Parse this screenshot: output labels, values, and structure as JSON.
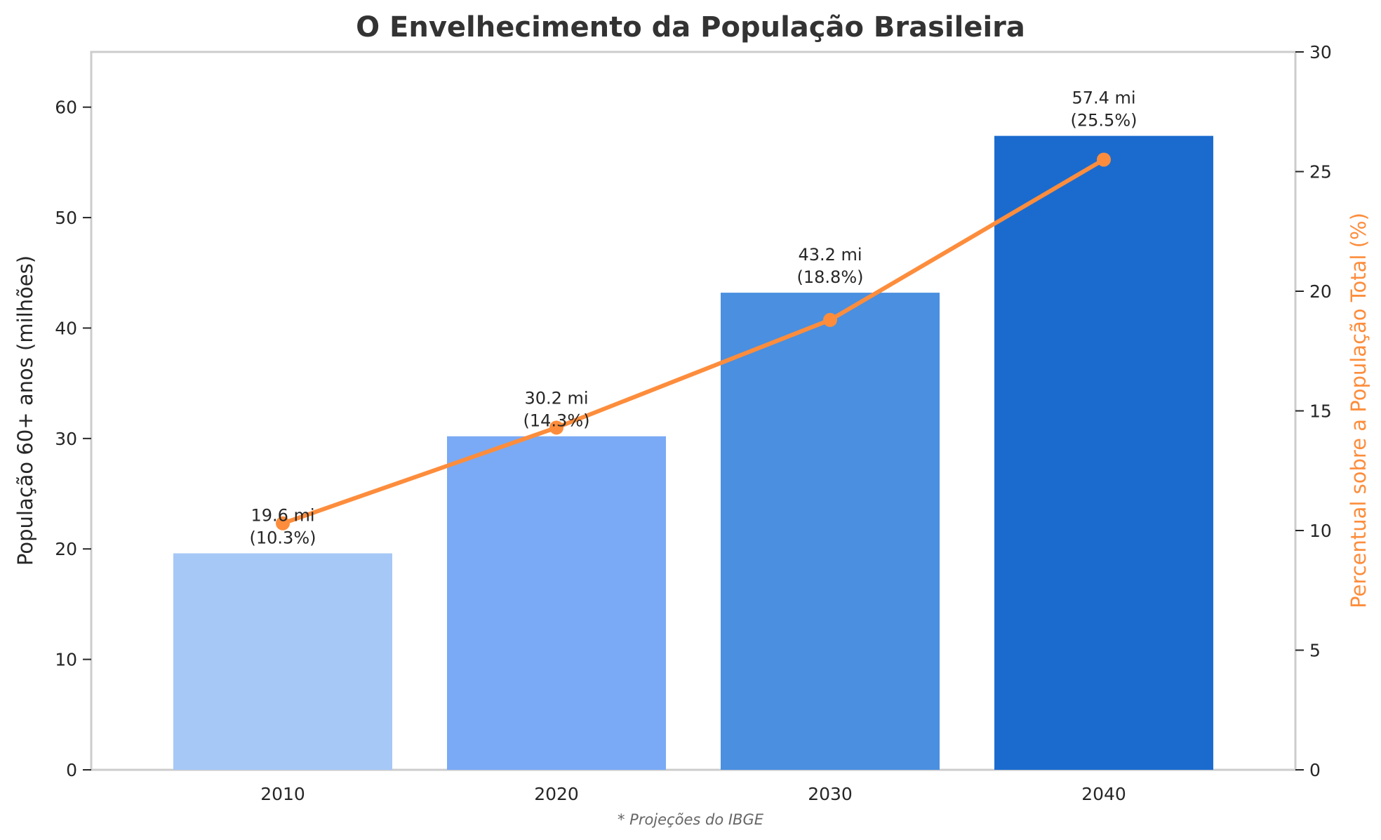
{
  "chart_data": {
    "type": "bar",
    "title": "O Envelhecimento da População Brasileira",
    "categories": [
      "2010",
      "2020",
      "2030",
      "2040"
    ],
    "series": [
      {
        "name": "População 60+ anos (milhões)",
        "type": "bar",
        "axis": "left",
        "values": [
          19.6,
          30.2,
          43.2,
          57.4
        ],
        "colors": [
          "#a5c8f6",
          "#7aaaf5",
          "#4a8fe0",
          "#1b6bcf"
        ]
      },
      {
        "name": "Percentual sobre a População Total (%)",
        "type": "line",
        "axis": "right",
        "values": [
          10.3,
          14.3,
          18.8,
          25.5
        ],
        "color": "#fd8d3c"
      }
    ],
    "data_labels": [
      {
        "line1": "19.6 mi",
        "line2": "(10.3%)"
      },
      {
        "line1": "30.2 mi",
        "line2": "(14.3%)"
      },
      {
        "line1": "43.2 mi",
        "line2": "(18.8%)"
      },
      {
        "line1": "57.4 mi",
        "line2": "(25.5%)"
      }
    ],
    "y_left": {
      "label": "População 60+ anos (milhões)",
      "lim": [
        0,
        65
      ],
      "ticks": [
        0,
        10,
        20,
        30,
        40,
        50,
        60
      ],
      "tick_labels": [
        "0",
        "10",
        "20",
        "30",
        "40",
        "50",
        "60"
      ]
    },
    "y_right": {
      "label": "Percentual sobre a População Total (%)",
      "label_color": "#fd8d3c",
      "lim": [
        0,
        30
      ],
      "ticks": [
        0,
        5,
        10,
        15,
        20,
        25,
        30
      ],
      "tick_labels": [
        "0",
        "5",
        "10",
        "15",
        "20",
        "25",
        "30"
      ]
    },
    "grid": false,
    "note": "* Projeções do IBGE"
  }
}
